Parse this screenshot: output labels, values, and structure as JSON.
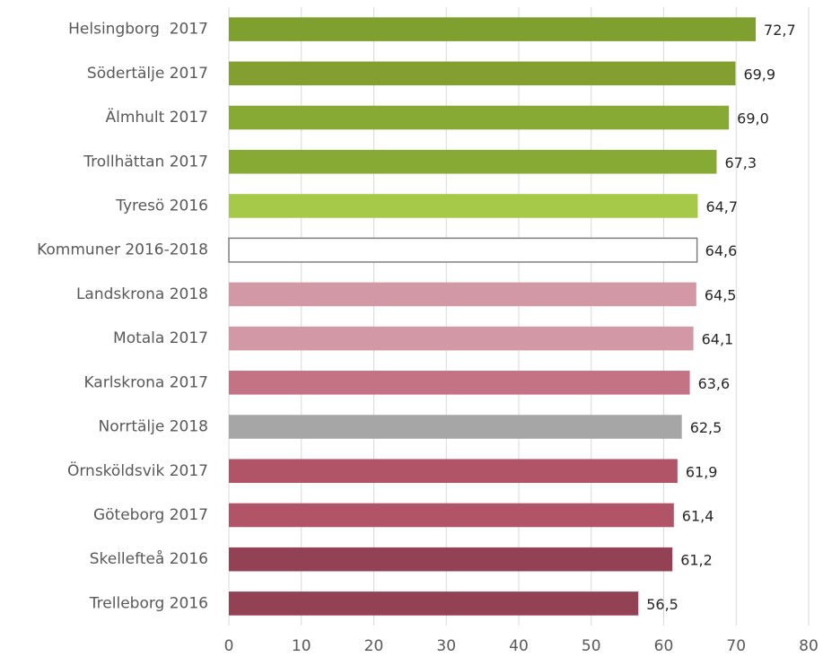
{
  "chart_data": {
    "type": "barh",
    "categories": [
      "Helsingborg  2017",
      "Södertälje 2017",
      "Älmhult 2017",
      "Trollhättan 2017",
      "Tyresö 2016",
      "Kommuner 2016-2018",
      "Landskrona 2018",
      "Motala 2017",
      "Karlskrona 2017",
      "Norrtälje 2018",
      "Örnsköldsvik 2017",
      "Göteborg 2017",
      "Skellefteå 2016",
      "Trelleborg 2016"
    ],
    "values": [
      72.7,
      69.9,
      69.0,
      67.3,
      64.7,
      64.6,
      64.5,
      64.1,
      63.6,
      62.5,
      61.9,
      61.4,
      61.2,
      56.5
    ],
    "value_labels": [
      "72,7",
      "69,9",
      "69,0",
      "67,3",
      "64,7",
      "64,6",
      "64,5",
      "64,1",
      "63,6",
      "62,5",
      "61,9",
      "61,4",
      "61,2",
      "56,5"
    ],
    "colors": [
      "#7f9f2f",
      "#829f30",
      "#87aa35",
      "#87aa35",
      "#a7c94a",
      "#ffffff",
      "#d398a6",
      "#d398a6",
      "#c47385",
      "#a6a6a6",
      "#b15467",
      "#b15467",
      "#934155",
      "#934155"
    ],
    "edge_colors": [
      null,
      null,
      null,
      null,
      null,
      "#7f7f7f",
      null,
      null,
      null,
      null,
      null,
      null,
      null,
      null
    ],
    "xlim": [
      0,
      80
    ],
    "xticks": [
      0,
      10,
      20,
      30,
      40,
      50,
      60,
      70,
      80
    ],
    "grid": true
  }
}
